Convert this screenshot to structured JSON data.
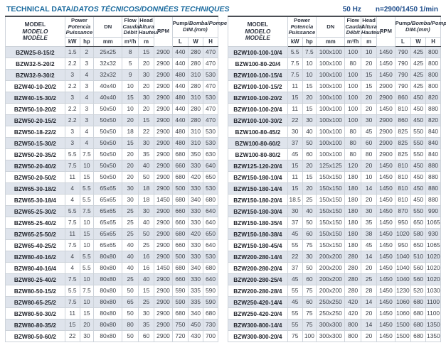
{
  "page": {
    "title_main": "TECHNICAL DATA/",
    "title_italic": "DATOS TÉCNICOS/DONNÉES TECHNIQUES",
    "frequency": "50 Hz",
    "speed": "n=2900/1450 1/min",
    "colors": {
      "title_blue": "#1a6a9e",
      "spec_blue": "#1f4e8c",
      "row_stripe": "#dfe4ec",
      "grid_line": "#cdd3da",
      "heavy_line": "#4b4f55"
    }
  },
  "header": {
    "model": [
      "MODEL",
      "MODELO",
      "MODÈLE"
    ],
    "power": [
      "Power",
      "Potencia",
      "Puissance"
    ],
    "dn": "DN",
    "flow": [
      "Flow",
      "Caudal",
      "Débit"
    ],
    "head": [
      "Head",
      "Altura",
      "Hauteur"
    ],
    "rpm": "RPM",
    "pump_dim_a": "Pump",
    "pump_dim_b": "/Bomba/Pompe",
    "pump_dim_line2": "DIM.(mm)",
    "units": {
      "kw": "kW",
      "hp": "hp",
      "mm": "mm",
      "flow": "m³/h",
      "head": "m",
      "l": "L",
      "w": "W",
      "h": "H"
    }
  },
  "tables": [
    {
      "rows": [
        [
          "BZW25-8-15/2",
          "1.5",
          "2",
          "25x25",
          "8",
          "15",
          "2900",
          "440",
          "280",
          "470"
        ],
        [
          "BZW32-5-20/2",
          "2.2",
          "3",
          "32x32",
          "5",
          "20",
          "2900",
          "440",
          "280",
          "470"
        ],
        [
          "BZW32-9-30/2",
          "3",
          "4",
          "32x32",
          "9",
          "30",
          "2900",
          "480",
          "310",
          "530"
        ],
        [
          "BZW40-10-20/2",
          "2.2",
          "3",
          "40x40",
          "10",
          "20",
          "2900",
          "440",
          "280",
          "470"
        ],
        [
          "BZW40-15-30/2",
          "3",
          "4",
          "40x40",
          "15",
          "30",
          "2900",
          "480",
          "310",
          "530"
        ],
        [
          "BZW50-10-20/2",
          "2.2",
          "3",
          "50x50",
          "10",
          "20",
          "2900",
          "440",
          "280",
          "470"
        ],
        [
          "BZW50-20-15/2",
          "2.2",
          "3",
          "50x50",
          "20",
          "15",
          "2900",
          "440",
          "280",
          "470"
        ],
        [
          "BZW50-18-22/2",
          "3",
          "4",
          "50x50",
          "18",
          "22",
          "2900",
          "480",
          "310",
          "530"
        ],
        [
          "BZW50-15-30/2",
          "3",
          "4",
          "50x50",
          "15",
          "30",
          "2900",
          "480",
          "310",
          "530"
        ],
        [
          "BZW50-20-35/2",
          "5.5",
          "7.5",
          "50x50",
          "20",
          "35",
          "2900",
          "680",
          "350",
          "630"
        ],
        [
          "BZW50-20-40/2",
          "7.5",
          "10",
          "50x50",
          "20",
          "40",
          "2900",
          "660",
          "330",
          "640"
        ],
        [
          "BZW50-20-50/2",
          "11",
          "15",
          "50x50",
          "20",
          "50",
          "2900",
          "680",
          "420",
          "650"
        ],
        [
          "BZW65-30-18/2",
          "4",
          "5.5",
          "65x65",
          "30",
          "18",
          "2900",
          "500",
          "330",
          "530"
        ],
        [
          "BZW65-30-18/4",
          "4",
          "5.5",
          "65x65",
          "30",
          "18",
          "1450",
          "680",
          "340",
          "680"
        ],
        [
          "BZW65-25-30/2",
          "5.5",
          "7.5",
          "65x65",
          "25",
          "30",
          "2900",
          "660",
          "330",
          "640"
        ],
        [
          "BZW65-25-40/2",
          "7.5",
          "10",
          "65x65",
          "25",
          "40",
          "2900",
          "660",
          "330",
          "640"
        ],
        [
          "BZW65-25-50/2",
          "11",
          "15",
          "65x65",
          "25",
          "50",
          "2900",
          "680",
          "420",
          "650"
        ],
        [
          "BZW65-40-25/2",
          "7.5",
          "10",
          "65x65",
          "40",
          "25",
          "2900",
          "660",
          "330",
          "640"
        ],
        [
          "BZW80-40-16/2",
          "4",
          "5.5",
          "80x80",
          "40",
          "16",
          "2900",
          "500",
          "330",
          "530"
        ],
        [
          "BZW80-40-16/4",
          "4",
          "5.5",
          "80x80",
          "40",
          "16",
          "1450",
          "680",
          "340",
          "680"
        ],
        [
          "BZW80-25-40/2",
          "7.5",
          "10",
          "80x80",
          "25",
          "40",
          "2900",
          "660",
          "330",
          "640"
        ],
        [
          "BZW80-50-15/2",
          "5.5",
          "7.5",
          "80x80",
          "50",
          "15",
          "2900",
          "590",
          "335",
          "590"
        ],
        [
          "BZW80-65-25/2",
          "7.5",
          "10",
          "80x80",
          "65",
          "25",
          "2900",
          "590",
          "335",
          "590"
        ],
        [
          "BZW80-50-30/2",
          "11",
          "15",
          "80x80",
          "50",
          "30",
          "2900",
          "680",
          "340",
          "680"
        ],
        [
          "BZW80-80-35/2",
          "15",
          "20",
          "80x80",
          "80",
          "35",
          "2900",
          "750",
          "450",
          "730"
        ],
        [
          "BZW80-50-60/2",
          "22",
          "30",
          "80x80",
          "50",
          "60",
          "2900",
          "720",
          "430",
          "700"
        ]
      ]
    },
    {
      "rows": [
        [
          "BZW100-100-10/4",
          "5.5",
          "7.5",
          "100x100",
          "100",
          "10",
          "1450",
          "790",
          "425",
          "800"
        ],
        [
          "BZW100-80-20/4",
          "7.5",
          "10",
          "100x100",
          "80",
          "20",
          "1450",
          "790",
          "425",
          "800"
        ],
        [
          "BZW100-100-15/4",
          "7.5",
          "10",
          "100x100",
          "100",
          "15",
          "1450",
          "790",
          "425",
          "800"
        ],
        [
          "BZW100-100-15/2",
          "11",
          "15",
          "100x100",
          "100",
          "15",
          "2900",
          "790",
          "425",
          "800"
        ],
        [
          "BZW100-100-20/2",
          "15",
          "20",
          "100x100",
          "100",
          "20",
          "2900",
          "860",
          "450",
          "820"
        ],
        [
          "BZW100-100-20/4",
          "11",
          "15",
          "100x100",
          "100",
          "20",
          "1450",
          "810",
          "450",
          "880"
        ],
        [
          "BZW100-100-30/2",
          "22",
          "30",
          "100x100",
          "100",
          "30",
          "2900",
          "860",
          "450",
          "820"
        ],
        [
          "BZW100-80-45/2",
          "30",
          "40",
          "100x100",
          "80",
          "45",
          "2900",
          "825",
          "550",
          "840"
        ],
        [
          "BZW100-80-60/2",
          "37",
          "50",
          "100x100",
          "80",
          "60",
          "2900",
          "825",
          "550",
          "840"
        ],
        [
          "BZW100-80-80/2",
          "45",
          "60",
          "100x100",
          "80",
          "80",
          "2900",
          "825",
          "550",
          "840"
        ],
        [
          "BZW125-120-20/4",
          "15",
          "20",
          "125x125",
          "120",
          "20",
          "1450",
          "810",
          "450",
          "880"
        ],
        [
          "BZW150-180-10/4",
          "11",
          "15",
          "150x150",
          "180",
          "10",
          "1450",
          "810",
          "450",
          "880"
        ],
        [
          "BZW150-180-14/4",
          "15",
          "20",
          "150x150",
          "180",
          "14",
          "1450",
          "810",
          "450",
          "880"
        ],
        [
          "BZW150-180-20/4",
          "18.5",
          "25",
          "150x150",
          "180",
          "20",
          "1450",
          "810",
          "450",
          "880"
        ],
        [
          "BZW150-180-30/4",
          "30",
          "40",
          "150x150",
          "180",
          "30",
          "1450",
          "870",
          "550",
          "990"
        ],
        [
          "BZW150-180-35/4",
          "37",
          "50",
          "150x150",
          "180",
          "35",
          "1450",
          "950",
          "650",
          "1065"
        ],
        [
          "BZW150-180-38/4",
          "45",
          "60",
          "150x150",
          "180",
          "38",
          "1450",
          "1020",
          "580",
          "930"
        ],
        [
          "BZW150-180-45/4",
          "55",
          "75",
          "150x150",
          "180",
          "45",
          "1450",
          "950",
          "650",
          "1065"
        ],
        [
          "BZW200-280-14/4",
          "22",
          "30",
          "200x200",
          "280",
          "14",
          "1450",
          "1040",
          "510",
          "1020"
        ],
        [
          "BZW200-280-20/4",
          "37",
          "50",
          "200x200",
          "280",
          "20",
          "1450",
          "1040",
          "560",
          "1020"
        ],
        [
          "BZW200-280-25/4",
          "45",
          "60",
          "200x200",
          "280",
          "25",
          "1450",
          "1040",
          "560",
          "1020"
        ],
        [
          "BZW200-280-28/4",
          "55",
          "75",
          "200x200",
          "280",
          "28",
          "1450",
          "1230",
          "520",
          "1030"
        ],
        [
          "BZW250-420-14/4",
          "45",
          "60",
          "250x250",
          "420",
          "14",
          "1450",
          "1060",
          "680",
          "1100"
        ],
        [
          "BZW250-420-20/4",
          "55",
          "75",
          "250x250",
          "420",
          "20",
          "1450",
          "1060",
          "680",
          "1100"
        ],
        [
          "BZW300-800-14/4",
          "55",
          "75",
          "300x300",
          "800",
          "14",
          "1450",
          "1500",
          "680",
          "1350"
        ],
        [
          "BZW300-800-20/4",
          "75",
          "100",
          "300x300",
          "800",
          "20",
          "1450",
          "1500",
          "680",
          "1350"
        ]
      ]
    }
  ]
}
